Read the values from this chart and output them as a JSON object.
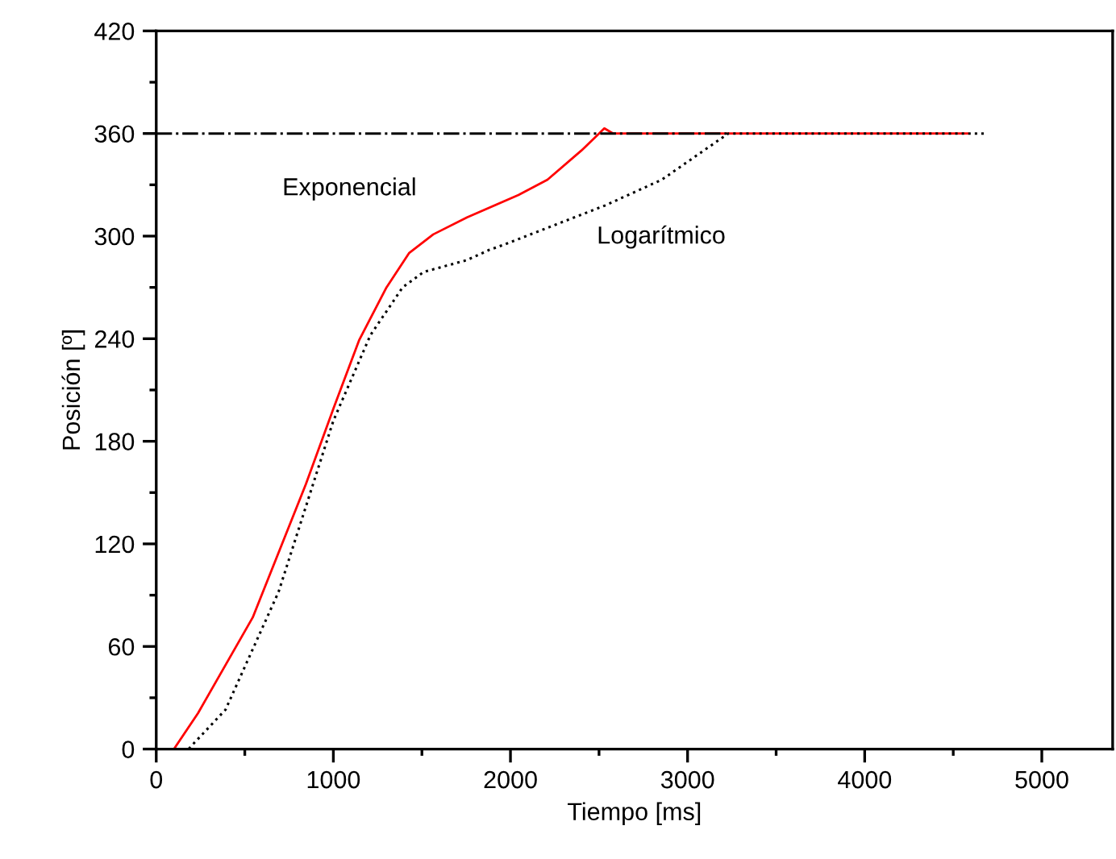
{
  "chart_data": {
    "type": "line",
    "xlabel": "Tiempo [ms]",
    "ylabel": "Posición [º]",
    "xlim": [
      0,
      5400
    ],
    "xticks": [
      0,
      1000,
      2000,
      3000,
      4000,
      5000
    ],
    "ylim": [
      0,
      420
    ],
    "yticks": [
      0,
      60,
      120,
      180,
      240,
      300,
      360,
      420
    ],
    "grid": false,
    "legend": false,
    "marker": "none",
    "series": [
      {
        "name": "Exponencial",
        "color": "#ff0000",
        "line_style": "solid",
        "x": [
          0,
          100,
          236,
          545,
          845,
          1000,
          1145,
          1300,
          1427,
          1564,
          1755,
          2045,
          2209,
          2400,
          2500,
          2530,
          2580,
          4000,
          4580
        ],
        "values": [
          0,
          0,
          21,
          77,
          155,
          199,
          239,
          270,
          290,
          301,
          311,
          324,
          333,
          350,
          360,
          363,
          360,
          360,
          360
        ]
      },
      {
        "name": "Logarítmico",
        "color": "#000000",
        "line_style": "dotted",
        "x": [
          0,
          182,
          391,
          691,
          1000,
          1209,
          1391,
          1509,
          1755,
          1882,
          1964,
          2536,
          2855,
          3230,
          4000,
          4673
        ],
        "values": [
          0,
          0,
          23,
          92,
          192,
          242,
          270,
          279,
          286,
          292,
          295,
          318,
          333,
          360,
          360,
          360
        ]
      },
      {
        "color": "#000000",
        "line_style": "dashdot",
        "x": [
          0,
          3230
        ],
        "values": [
          360,
          360
        ]
      }
    ]
  }
}
